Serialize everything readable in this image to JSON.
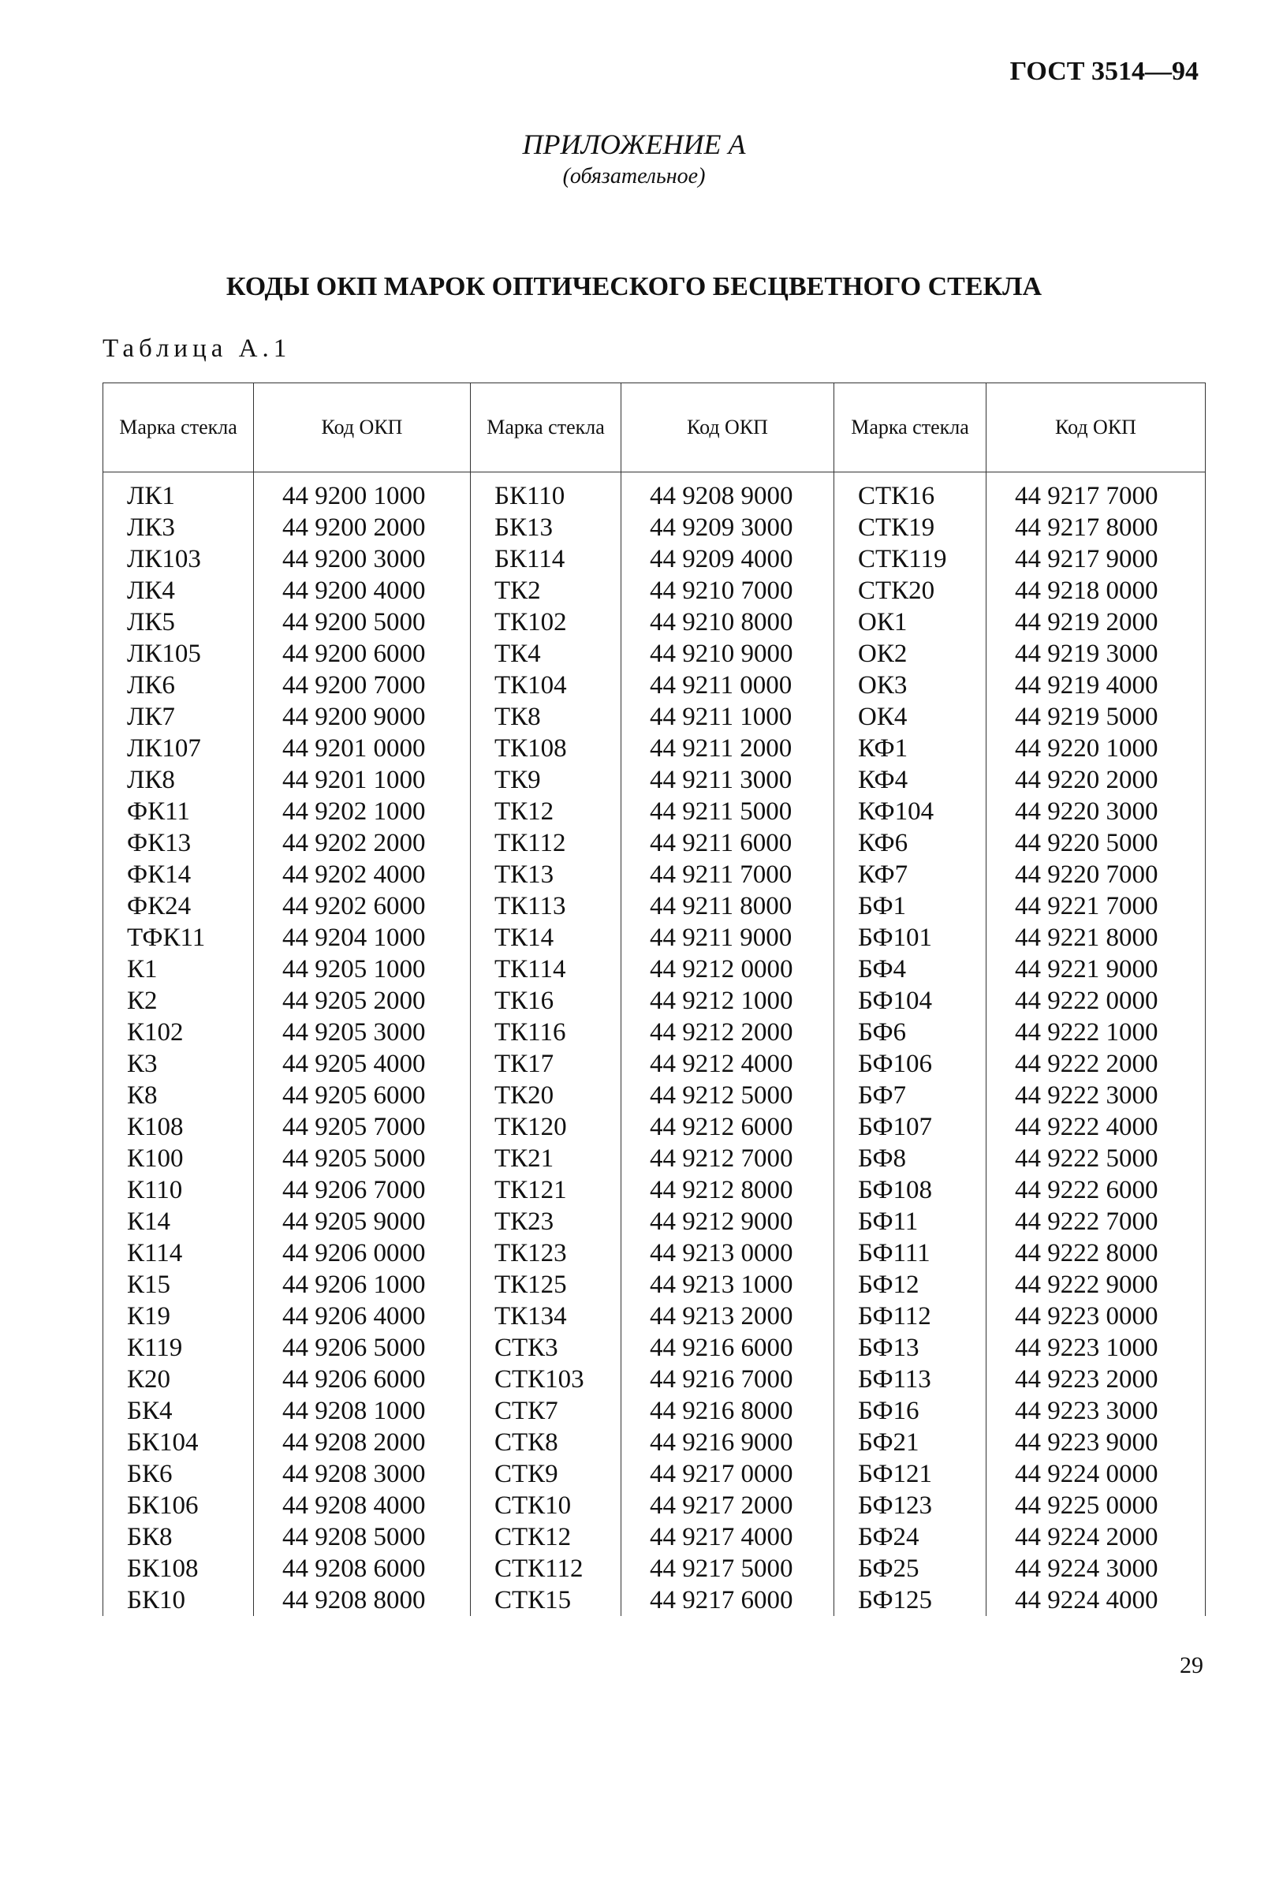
{
  "header": {
    "standard": "ГОСТ 3514—94",
    "page_number": "29"
  },
  "appendix": {
    "title": "ПРИЛОЖЕНИЕ А",
    "note": "(обязательное)"
  },
  "title": "КОДЫ ОКП МАРОК ОПТИЧЕСКОГО БЕСЦВЕТНОГО СТЕКЛА",
  "table": {
    "caption": "Таблица А.1",
    "columns": [
      "Марка стекла",
      "Код ОКП",
      "Марка стекла",
      "Код ОКП",
      "Марка стекла",
      "Код ОКП"
    ],
    "rows": [
      [
        "ЛК1",
        "44 9200 1000",
        "БК110",
        "44 9208 9000",
        "СТК16",
        "44 9217 7000"
      ],
      [
        "ЛК3",
        "44 9200 2000",
        "БК13",
        "44 9209 3000",
        "СТК19",
        "44 9217 8000"
      ],
      [
        "ЛК103",
        "44 9200 3000",
        "БК114",
        "44 9209 4000",
        "СТК119",
        "44 9217 9000"
      ],
      [
        "ЛК4",
        "44 9200 4000",
        "ТК2",
        "44 9210 7000",
        "СТК20",
        "44 9218 0000"
      ],
      [
        "ЛК5",
        "44 9200 5000",
        "ТК102",
        "44 9210 8000",
        "ОК1",
        "44 9219 2000"
      ],
      [
        "ЛК105",
        "44 9200 6000",
        "ТК4",
        "44 9210 9000",
        "ОК2",
        "44 9219 3000"
      ],
      [
        "ЛК6",
        "44 9200 7000",
        "ТК104",
        "44 9211 0000",
        "ОК3",
        "44 9219 4000"
      ],
      [
        "ЛК7",
        "44 9200 9000",
        "ТК8",
        "44 9211 1000",
        "ОК4",
        "44 9219 5000"
      ],
      [
        "ЛК107",
        "44 9201 0000",
        "ТК108",
        "44 9211 2000",
        "КФ1",
        "44 9220 1000"
      ],
      [
        "ЛК8",
        "44 9201 1000",
        "ТК9",
        "44 9211 3000",
        "КФ4",
        "44 9220 2000"
      ],
      [
        "ФК11",
        "44 9202 1000",
        "ТК12",
        "44 9211 5000",
        "КФ104",
        "44 9220 3000"
      ],
      [
        "ФК13",
        "44 9202 2000",
        "ТК112",
        "44 9211 6000",
        "КФ6",
        "44 9220 5000"
      ],
      [
        "ФК14",
        "44 9202 4000",
        "ТК13",
        "44 9211 7000",
        "КФ7",
        "44 9220 7000"
      ],
      [
        "ФК24",
        "44 9202 6000",
        "ТК113",
        "44 9211 8000",
        "БФ1",
        "44 9221 7000"
      ],
      [
        "ТФК11",
        "44 9204 1000",
        "ТК14",
        "44 9211 9000",
        "БФ101",
        "44 9221 8000"
      ],
      [
        "К1",
        "44 9205 1000",
        "ТК114",
        "44 9212 0000",
        "БФ4",
        "44 9221 9000"
      ],
      [
        "К2",
        "44 9205 2000",
        "ТК16",
        "44 9212 1000",
        "БФ104",
        "44 9222 0000"
      ],
      [
        "К102",
        "44 9205 3000",
        "ТК116",
        "44 9212 2000",
        "БФ6",
        "44 9222 1000"
      ],
      [
        "К3",
        "44 9205 4000",
        "ТК17",
        "44 9212 4000",
        "БФ106",
        "44 9222 2000"
      ],
      [
        "К8",
        "44 9205 6000",
        "ТК20",
        "44 9212 5000",
        "БФ7",
        "44 9222 3000"
      ],
      [
        "К108",
        "44 9205 7000",
        "ТК120",
        "44 9212 6000",
        "БФ107",
        "44 9222 4000"
      ],
      [
        "К100",
        "44 9205 5000",
        "ТК21",
        "44 9212 7000",
        "БФ8",
        "44 9222 5000"
      ],
      [
        "К110",
        "44 9206 7000",
        "ТК121",
        "44 9212 8000",
        "БФ108",
        "44 9222 6000"
      ],
      [
        "К14",
        "44 9205 9000",
        "ТК23",
        "44 9212 9000",
        "БФ11",
        "44 9222 7000"
      ],
      [
        "К114",
        "44 9206 0000",
        "ТК123",
        "44 9213 0000",
        "БФ111",
        "44 9222 8000"
      ],
      [
        "К15",
        "44 9206 1000",
        "ТК125",
        "44 9213 1000",
        "БФ12",
        "44 9222 9000"
      ],
      [
        "К19",
        "44 9206 4000",
        "ТК134",
        "44 9213 2000",
        "БФ112",
        "44 9223 0000"
      ],
      [
        "К119",
        "44 9206 5000",
        "СТК3",
        "44 9216 6000",
        "БФ13",
        "44 9223 1000"
      ],
      [
        "К20",
        "44 9206 6000",
        "СТК103",
        "44 9216 7000",
        "БФ113",
        "44 9223 2000"
      ],
      [
        "БК4",
        "44 9208 1000",
        "СТК7",
        "44 9216 8000",
        "БФ16",
        "44 9223 3000"
      ],
      [
        "БК104",
        "44 9208 2000",
        "СТК8",
        "44 9216 9000",
        "БФ21",
        "44 9223 9000"
      ],
      [
        "БК6",
        "44 9208 3000",
        "СТК9",
        "44 9217 0000",
        "БФ121",
        "44 9224 0000"
      ],
      [
        "БК106",
        "44 9208 4000",
        "СТК10",
        "44 9217 2000",
        "БФ123",
        "44 9225 0000"
      ],
      [
        "БК8",
        "44 9208 5000",
        "СТК12",
        "44 9217 4000",
        "БФ24",
        "44 9224 2000"
      ],
      [
        "БК108",
        "44 9208 6000",
        "СТК112",
        "44 9217 5000",
        "БФ25",
        "44 9224 3000"
      ],
      [
        "БК10",
        "44 9208 8000",
        "СТК15",
        "44 9217 6000",
        "БФ125",
        "44 9224 4000"
      ]
    ]
  }
}
